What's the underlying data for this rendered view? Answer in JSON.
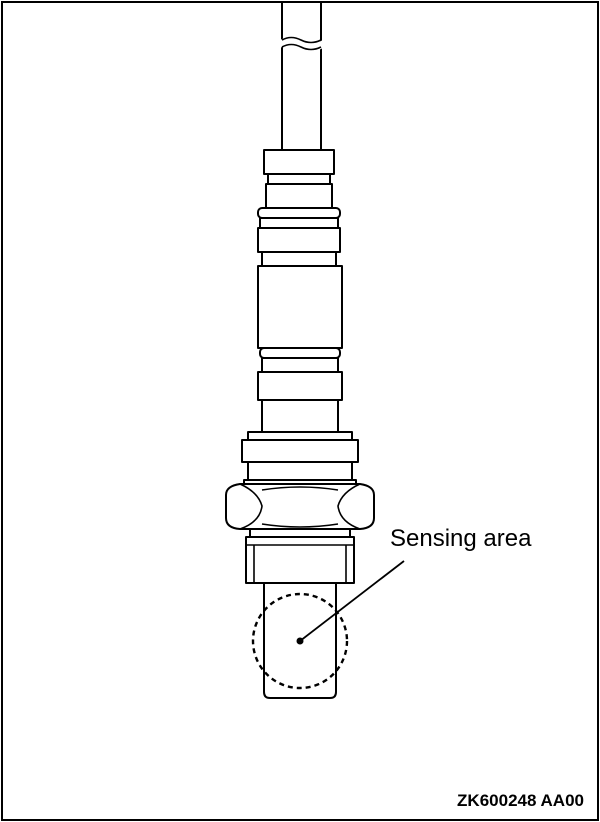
{
  "figure": {
    "callout_label": "Sensing area",
    "figure_code": "ZK600248 AA00",
    "icon": "oxygen-sensor-icon"
  }
}
